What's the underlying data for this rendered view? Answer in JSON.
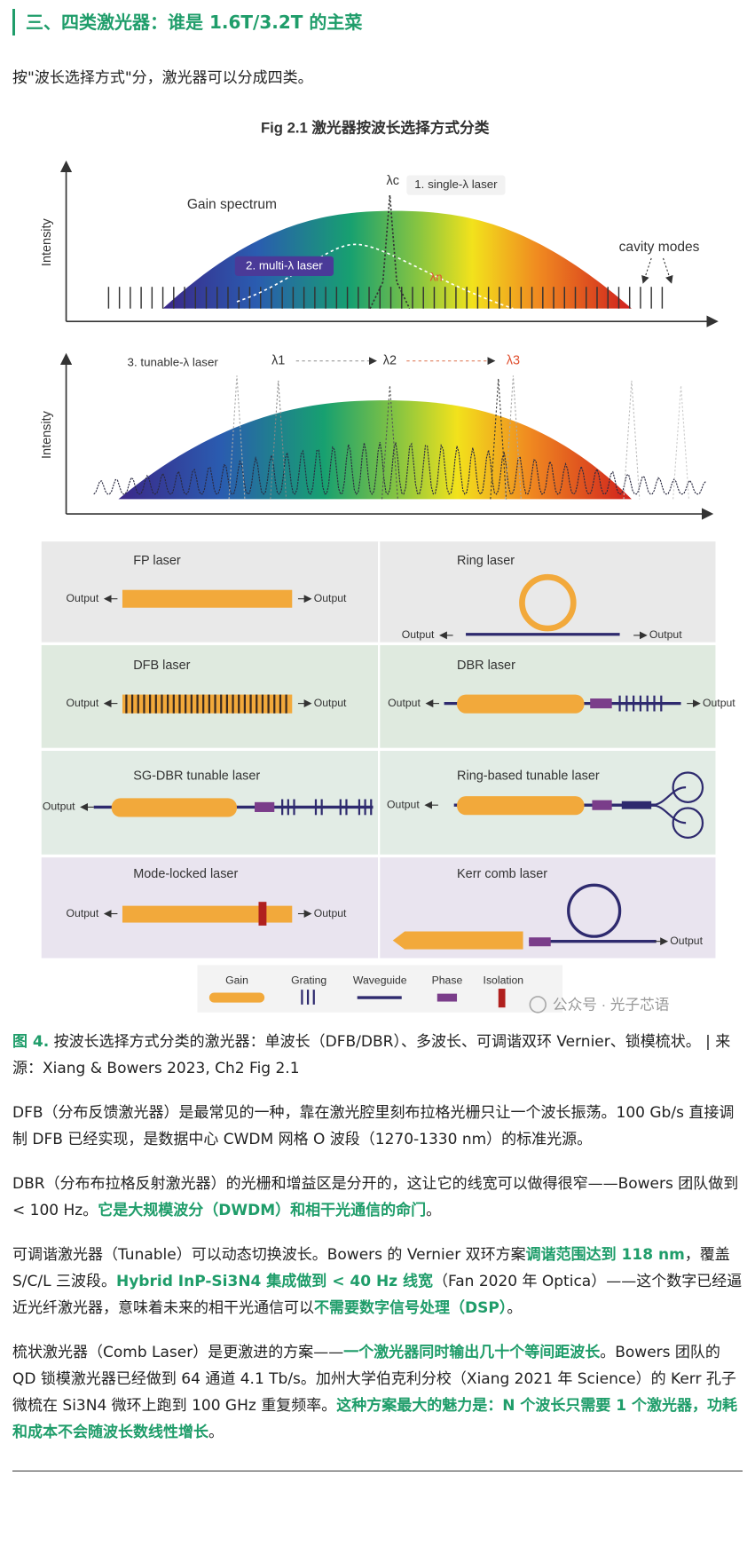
{
  "heading": "三、四类激光器：谁是 1.6T/3.2T 的主菜",
  "intro": "按\"波长选择方式\"分，激光器可以分成四类。",
  "figure": {
    "title": "Fig 2.1 激光器按波长选择方式分类",
    "axis_label": "Intensity",
    "top_panel": {
      "gain_label": "Gain spectrum",
      "lambda_c": "λc",
      "single_label": "1. single-λ laser",
      "multi_label": "2. multi-λ laser",
      "lambda_n": "λn",
      "cavity_label": "cavity modes"
    },
    "bottom_panel": {
      "tunable_label": "3. tunable-λ laser",
      "lambdas": [
        "λ1",
        "λ2",
        "λ3"
      ]
    },
    "output_label": "Output",
    "cells": [
      "FP laser",
      "Ring laser",
      "DFB laser",
      "DBR laser",
      "SG-DBR tunable laser",
      "Ring-based tunable laser",
      "Mode-locked laser",
      "Kerr comb laser"
    ],
    "legend": [
      "Gain",
      "Grating",
      "Waveguide",
      "Phase",
      "Isolation"
    ],
    "watermark": "公众号 · 光子芯语"
  },
  "caption": {
    "label": "图 4.",
    "text": "按波长选择方式分类的激光器：单波长（DFB/DBR）、多波长、可调谐双环 Vernier、锁模梳状。 | 来源：Xiang & Bowers 2023, Ch2 Fig 2.1"
  },
  "paragraphs": [
    [
      {
        "text": "DFB（分布反馈激光器）是最常见的一种，靠在激光腔里刻布拉格光栅只让一个波长振荡。100 Gb/s 直接调制 DFB 已经实现，是数据中心 CWDM 网格 O 波段（1270-1330 nm）的标准光源。",
        "bold": false
      }
    ],
    [
      {
        "text": "DBR（分布布拉格反射激光器）的光栅和增益区是分开的，这让它的线宽可以做得很窄——Bowers 团队做到 < 100 Hz。",
        "bold": false
      },
      {
        "text": "它是大规模波分（DWDM）和相干光通信的命门",
        "bold": true
      },
      {
        "text": "。",
        "bold": false
      }
    ],
    [
      {
        "text": "可调谐激光器（Tunable）可以动态切换波长。Bowers 的 Vernier 双环方案",
        "bold": false
      },
      {
        "text": "调谐范围达到 118 nm",
        "bold": true
      },
      {
        "text": "，覆盖 S/C/L 三波段。",
        "bold": false
      },
      {
        "text": "Hybrid InP-Si3N4 集成做到 < 40 Hz 线宽",
        "bold": true
      },
      {
        "text": "（Fan 2020 年 Optica）——这个数字已经逼近光纤激光器，意味着未来的相干光通信可以",
        "bold": false
      },
      {
        "text": "不需要数字信号处理（DSP）",
        "bold": true
      },
      {
        "text": "。",
        "bold": false
      }
    ],
    [
      {
        "text": "梳状激光器（Comb Laser）是更激进的方案——",
        "bold": false
      },
      {
        "text": "一个激光器同时输出几十个等间距波长",
        "bold": true
      },
      {
        "text": "。Bowers 团队的 QD 锁模激光器已经做到 64 通道 4.1 Tb/s。加州大学伯克利分校（Xiang 2021 年 Science）的 Kerr 孔子微梳在 Si3N4 微环上跑到 100 GHz 重复频率。",
        "bold": false
      },
      {
        "text": "这种方案最大的魅力是：N 个波长只需要 1 个激光器，功耗和成本不会随波长数线性增长",
        "bold": true
      },
      {
        "text": "。",
        "bold": false
      }
    ]
  ]
}
